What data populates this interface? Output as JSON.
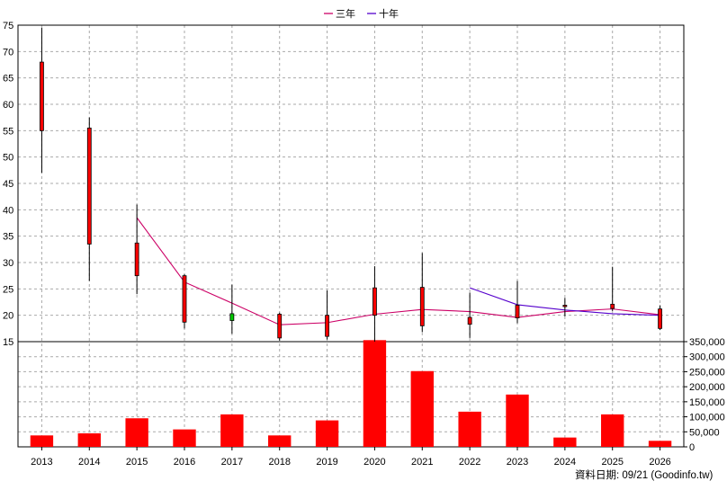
{
  "chart_data": [
    {
      "type": "candlestick",
      "legend": [
        "三年",
        "十年"
      ],
      "legend_colors": [
        "#cc0066",
        "#5500cc"
      ],
      "categories": [
        "2013",
        "2014",
        "2015",
        "2016",
        "2017",
        "2018",
        "2019",
        "2020",
        "2021",
        "2022",
        "2023",
        "2024",
        "2025",
        "2026"
      ],
      "ylim": [
        15,
        75
      ],
      "yticks": [
        15,
        20,
        25,
        30,
        35,
        40,
        45,
        50,
        55,
        60,
        65,
        70,
        75
      ],
      "grid": true,
      "up_color": "#ff0000",
      "down_color": "#00cc00",
      "candles": [
        {
          "open": 55,
          "high": 74.5,
          "low": 47,
          "close": 68
        },
        {
          "open": 33.5,
          "high": 57.5,
          "low": 26.5,
          "close": 55.5
        },
        {
          "open": 27.5,
          "high": 41,
          "low": 24,
          "close": 33.7
        },
        {
          "open": 18.7,
          "high": 27.8,
          "low": 17.5,
          "close": 27.5
        },
        {
          "open": 20.3,
          "high": 25.8,
          "low": 16.5,
          "close": 19
        },
        {
          "open": 15.7,
          "high": 20.5,
          "low": 15.2,
          "close": 20.2
        },
        {
          "open": 16,
          "high": 24.7,
          "low": 15.4,
          "close": 20
        },
        {
          "open": 20,
          "high": 29.3,
          "low": 15,
          "close": 25.2
        },
        {
          "open": 18,
          "high": 31.8,
          "low": 16.8,
          "close": 25.3
        },
        {
          "open": 18.3,
          "high": 24.3,
          "low": 15.7,
          "close": 19.6
        },
        {
          "open": 19.5,
          "high": 26.5,
          "low": 18.5,
          "close": 21.9
        },
        {
          "open": 21.8,
          "high": 23.3,
          "low": 19.8,
          "close": 21.9
        },
        {
          "open": 21.3,
          "high": 29.2,
          "low": 20.8,
          "close": 22.1
        },
        {
          "open": 17.5,
          "high": 21.9,
          "low": 17.2,
          "close": 21.2
        }
      ],
      "series": [
        {
          "name": "三年",
          "values": [
            null,
            null,
            38.5,
            26.3,
            22.3,
            18.2,
            18.6,
            20.2,
            21.1,
            20.7,
            19.6,
            20.7,
            21.2,
            20.1
          ]
        },
        {
          "name": "十年",
          "values": [
            null,
            null,
            null,
            null,
            null,
            null,
            null,
            null,
            null,
            25.2,
            22,
            21,
            20.3,
            20
          ]
        }
      ]
    },
    {
      "type": "bar",
      "categories": [
        "2013",
        "2014",
        "2015",
        "2016",
        "2017",
        "2018",
        "2019",
        "2020",
        "2021",
        "2022",
        "2023",
        "2024",
        "2025",
        "2026"
      ],
      "values": [
        38000,
        45000,
        95000,
        58000,
        108000,
        38000,
        88000,
        355000,
        252000,
        117000,
        174000,
        31000,
        108000,
        20000
      ],
      "ylim": [
        0,
        350000
      ],
      "yticks": [
        "0",
        "50,000",
        "100,000",
        "150,000",
        "200,000",
        "250,000",
        "300,000",
        "350,000"
      ],
      "bar_color": "#ff0000",
      "grid": true
    }
  ],
  "footer": "資料日期: 09/21  (Goodinfo.tw)"
}
